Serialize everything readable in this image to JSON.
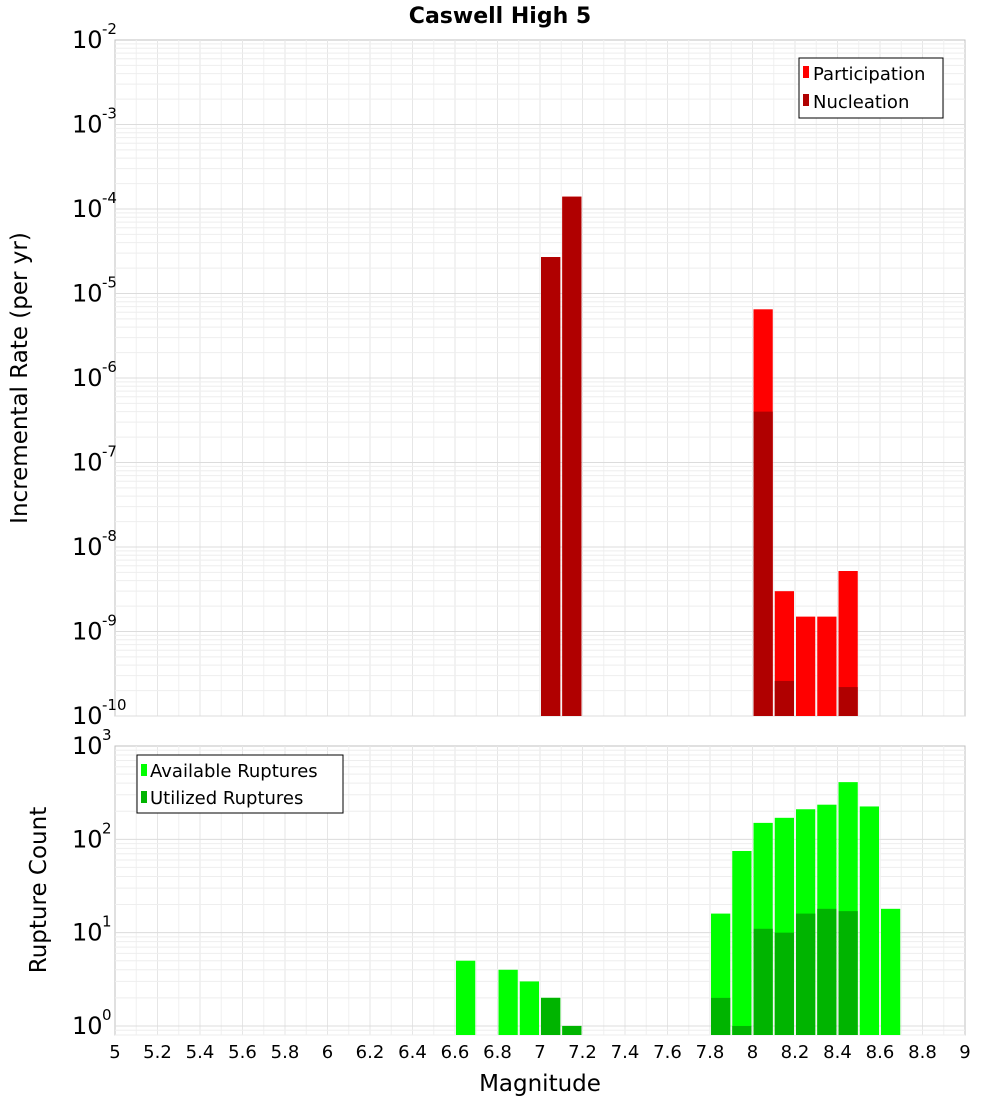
{
  "chart_data": [
    {
      "type": "bar",
      "title": "Caswell High 5",
      "xlabel": "",
      "ylabel": "Incremental Rate (per yr)",
      "xlim": [
        5,
        9
      ],
      "ylim": [
        1e-10,
        0.01
      ],
      "yscale": "log",
      "bin_width": 0.1,
      "legend_position": "top-right",
      "series": [
        {
          "name": "Participation",
          "color": "#ff0000",
          "x": [
            7.05,
            7.15,
            8.05,
            8.15,
            8.25,
            8.35,
            8.45
          ],
          "values": [
            2.7e-05,
            0.00014,
            6.5e-06,
            3e-09,
            1.5e-09,
            1.5e-09,
            5.2e-09
          ]
        },
        {
          "name": "Nucleation",
          "color": "#b00000",
          "x": [
            7.05,
            7.15,
            8.05,
            8.15,
            8.45
          ],
          "values": [
            2.7e-05,
            0.00014,
            4e-07,
            2.6e-10,
            2.2e-10
          ]
        }
      ]
    },
    {
      "type": "bar",
      "title": "",
      "xlabel": "Magnitude",
      "ylabel": "Rupture Count",
      "xlim": [
        5,
        9
      ],
      "ylim": [
        0.8,
        1000
      ],
      "yscale": "log",
      "bin_width": 0.1,
      "legend_position": "top-left",
      "x_ticks": [
        "5",
        "5.2",
        "5.4",
        "5.6",
        "5.8",
        "6",
        "6.2",
        "6.4",
        "6.6",
        "6.8",
        "7",
        "7.2",
        "7.4",
        "7.6",
        "7.8",
        "8",
        "8.2",
        "8.4",
        "8.6",
        "8.8",
        "9"
      ],
      "series": [
        {
          "name": "Available Ruptures",
          "color": "#00ff00",
          "x": [
            6.65,
            6.85,
            6.95,
            7.05,
            7.15,
            7.85,
            7.95,
            8.05,
            8.15,
            8.25,
            8.35,
            8.45,
            8.55,
            8.65
          ],
          "values": [
            5,
            4,
            3,
            2,
            1,
            16,
            75,
            150,
            170,
            210,
            235,
            410,
            225,
            18
          ]
        },
        {
          "name": "Utilized Ruptures",
          "color": "#00b400",
          "x": [
            7.05,
            7.15,
            7.85,
            7.95,
            8.05,
            8.15,
            8.25,
            8.35,
            8.45
          ],
          "values": [
            2,
            1,
            2,
            1,
            11,
            10,
            16,
            18,
            17
          ]
        }
      ]
    }
  ]
}
